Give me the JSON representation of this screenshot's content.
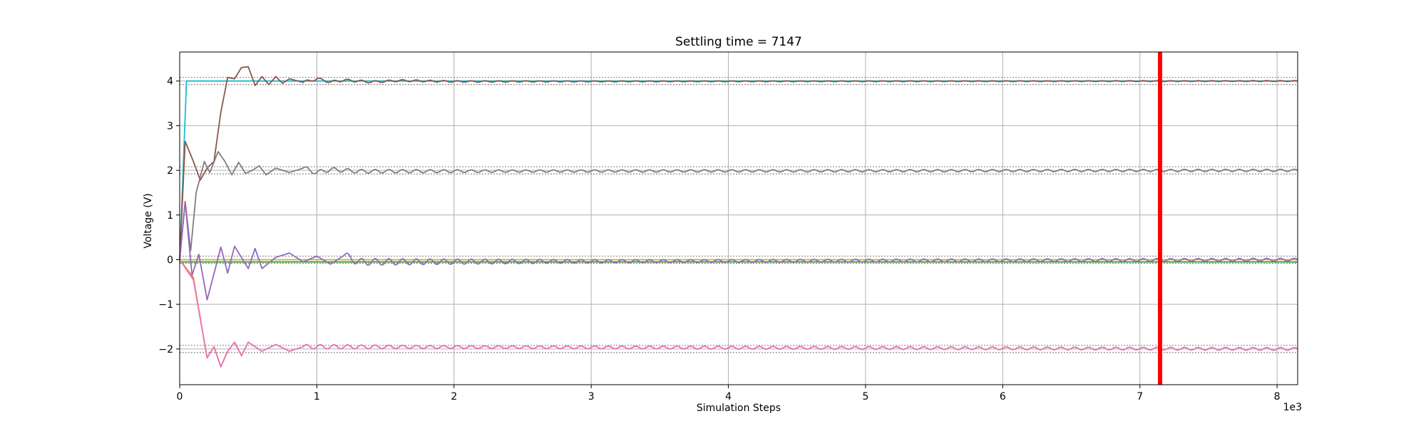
{
  "chart_data": {
    "type": "line",
    "title": "Settling time = 7147",
    "xlabel": "Simulation Steps",
    "ylabel": "Voltage (V)",
    "x_offset_label": "1e3",
    "xlim": [
      0,
      8.15
    ],
    "ylim": [
      -2.8,
      4.65
    ],
    "x_tick_values": [
      0,
      1,
      2,
      3,
      4,
      5,
      6,
      7,
      8
    ],
    "x_tick_labels": [
      "0",
      "1",
      "2",
      "3",
      "4",
      "5",
      "6",
      "7",
      "8"
    ],
    "y_tick_values": [
      -2,
      -1,
      0,
      1,
      2,
      3,
      4
    ],
    "y_tick_labels": [
      "−2",
      "−1",
      "0",
      "1",
      "2",
      "3",
      "4"
    ],
    "grid": true,
    "legend": "none",
    "settling_marker": {
      "x": 7.147,
      "color": "#ff0000"
    },
    "tolerance_bands": [
      {
        "center": 4,
        "low": 3.92,
        "high": 4.08
      },
      {
        "center": 2,
        "low": 1.92,
        "high": 2.08
      },
      {
        "center": 0,
        "low": -0.08,
        "high": 0.08
      },
      {
        "center": -2,
        "low": -2.08,
        "high": -1.92
      }
    ],
    "series": [
      {
        "color": "#17becf",
        "points": [
          [
            0,
            0
          ],
          [
            0.05,
            4
          ],
          [
            8.15,
            4
          ]
        ]
      },
      {
        "color": "#bcbd22",
        "points": [
          [
            0,
            0
          ],
          [
            8.15,
            0
          ]
        ]
      },
      {
        "color": "#2ca02c",
        "points": [
          [
            0,
            -0.05
          ],
          [
            8.15,
            -0.05
          ]
        ]
      },
      {
        "color": "#8c564b",
        "points": [
          [
            0,
            0
          ],
          [
            0.04,
            2.65
          ],
          [
            0.1,
            2.2
          ],
          [
            0.15,
            1.78
          ],
          [
            0.2,
            2.05
          ],
          [
            0.25,
            2.2
          ],
          [
            0.3,
            3.3
          ],
          [
            0.35,
            4.08
          ],
          [
            0.4,
            4.05
          ],
          [
            0.45,
            4.3
          ],
          [
            0.5,
            4.32
          ],
          [
            0.55,
            3.9
          ],
          [
            0.6,
            4.1
          ],
          [
            0.65,
            3.92
          ],
          [
            0.7,
            4.1
          ],
          [
            0.75,
            3.95
          ],
          [
            0.8,
            4.05
          ],
          [
            0.9,
            3.97
          ],
          [
            1.0,
            4.05
          ],
          [
            1.1,
            3.98
          ],
          [
            1.2,
            4.02
          ],
          [
            1.4,
            3.98
          ],
          [
            1.6,
            4.01
          ],
          [
            2.0,
            3.99
          ],
          [
            8.15,
            4.0
          ]
        ],
        "ripple": {
          "start": 0.9,
          "amplitude": 0.03,
          "period": 0.1,
          "decay": 0.5,
          "floor": 0.3,
          "center": 4.0
        }
      },
      {
        "color": "#7f7f7f",
        "points": [
          [
            0,
            0
          ],
          [
            0.04,
            1.3
          ],
          [
            0.08,
            0.2
          ],
          [
            0.12,
            1.5
          ],
          [
            0.18,
            2.2
          ],
          [
            0.22,
            1.95
          ],
          [
            0.28,
            2.42
          ],
          [
            0.33,
            2.2
          ],
          [
            0.38,
            1.9
          ],
          [
            0.43,
            2.18
          ],
          [
            0.48,
            1.93
          ],
          [
            0.53,
            2.0
          ],
          [
            0.58,
            2.1
          ],
          [
            0.63,
            1.9
          ],
          [
            0.7,
            2.05
          ],
          [
            0.8,
            1.95
          ],
          [
            0.9,
            2.05
          ],
          [
            1.0,
            1.95
          ],
          [
            1.1,
            2.02
          ],
          [
            1.3,
            1.98
          ],
          [
            8.15,
            2.0
          ]
        ],
        "ripple": {
          "start": 0.9,
          "amplitude": 0.05,
          "period": 0.1,
          "decay": 0.45,
          "floor": 0.5,
          "center": 2.0
        }
      },
      {
        "color": "#9467bd",
        "points": [
          [
            0,
            0
          ],
          [
            0.04,
            1.3
          ],
          [
            0.09,
            -0.35
          ],
          [
            0.14,
            0.12
          ],
          [
            0.2,
            -0.9
          ],
          [
            0.26,
            -0.2
          ],
          [
            0.3,
            0.28
          ],
          [
            0.35,
            -0.3
          ],
          [
            0.4,
            0.3
          ],
          [
            0.45,
            0.05
          ],
          [
            0.5,
            -0.2
          ],
          [
            0.55,
            0.25
          ],
          [
            0.6,
            -0.2
          ],
          [
            0.7,
            0.05
          ],
          [
            0.8,
            0.15
          ],
          [
            0.9,
            -0.05
          ],
          [
            1.0,
            0.08
          ],
          [
            1.1,
            -0.1
          ],
          [
            1.2,
            0.1
          ],
          [
            1.3,
            -0.05
          ],
          [
            8.15,
            0.0
          ]
        ],
        "ripple": {
          "start": 1.2,
          "amplitude": 0.08,
          "period": 0.1,
          "decay": 0.4,
          "floor": 0.4,
          "center": 0.0
        }
      },
      {
        "color": "#ff7f0e",
        "points": [
          [
            0,
            0
          ],
          [
            0.1,
            -0.4
          ],
          [
            0.2,
            -2.2
          ],
          [
            0.25,
            -1.95
          ],
          [
            0.3,
            -2.4
          ],
          [
            0.35,
            -2.05
          ],
          [
            0.4,
            -1.85
          ],
          [
            0.45,
            -2.15
          ],
          [
            0.5,
            -1.85
          ],
          [
            0.6,
            -2.05
          ],
          [
            0.7,
            -1.9
          ],
          [
            0.8,
            -2.05
          ],
          [
            0.9,
            -1.95
          ],
          [
            8.15,
            -2.0
          ]
        ],
        "ripple": {
          "start": 0.9,
          "amplitude": 0.05,
          "period": 0.1,
          "decay": 0.4,
          "floor": 0.6,
          "center": -2.0
        }
      },
      {
        "color": "#e377c2",
        "points": [
          [
            0,
            0
          ],
          [
            0.1,
            -0.45
          ],
          [
            0.2,
            -2.2
          ],
          [
            0.25,
            -1.95
          ],
          [
            0.3,
            -2.4
          ],
          [
            0.35,
            -2.05
          ],
          [
            0.4,
            -1.85
          ],
          [
            0.45,
            -2.15
          ],
          [
            0.5,
            -1.85
          ],
          [
            0.6,
            -2.05
          ],
          [
            0.7,
            -1.9
          ],
          [
            0.8,
            -2.05
          ],
          [
            0.9,
            -1.95
          ],
          [
            8.15,
            -2.0
          ]
        ],
        "ripple": {
          "start": 0.9,
          "amplitude": 0.05,
          "period": 0.1,
          "decay": 0.4,
          "floor": 0.6,
          "center": -2.0
        }
      }
    ]
  }
}
